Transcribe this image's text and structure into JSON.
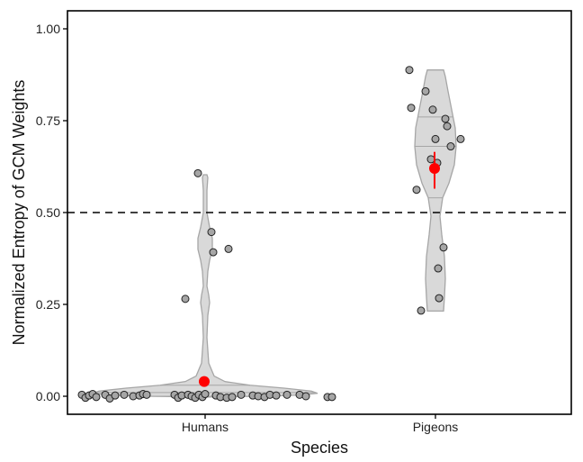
{
  "chart_data": {
    "type": "violin",
    "xlabel": "Species",
    "ylabel": "Normalized Entropy of GCM Weights",
    "ylim": [
      -0.05,
      1.05
    ],
    "yticks": [
      "0.00",
      "0.25",
      "0.50",
      "0.75",
      "1.00"
    ],
    "ytick_values": [
      0,
      0.25,
      0.5,
      0.75,
      1.0
    ],
    "categories": [
      "Humans",
      "Pigeons"
    ],
    "reference_line": {
      "y": 0.5,
      "style": "dashed",
      "color": "#000000"
    },
    "colors": {
      "violin_fill": "#d9d9d9",
      "violin_stroke": "#a6a6a6",
      "points": "#a6a6a6",
      "mean": "#ff0000"
    },
    "groups": [
      {
        "name": "Humans",
        "mean": 0.04,
        "error": [
          0.035,
          0.045
        ],
        "quantiles": [
          0.0,
          0.01,
          0.03
        ],
        "points": [
          0.004,
          -0.004,
          0.002,
          0.006,
          -0.002,
          0.004,
          -0.006,
          0.002,
          0.004,
          0.0,
          0.002,
          0.006,
          0.004,
          0.004,
          -0.004,
          0.002,
          0.004,
          0.0,
          -0.004,
          0.004,
          -0.002,
          0.006,
          0.002,
          -0.002,
          -0.004,
          -0.002,
          0.004,
          0.002,
          0.0,
          -0.002,
          0.004,
          0.002,
          0.004,
          0.004,
          0.0,
          -0.002,
          -0.002,
          0.607,
          0.447,
          0.392,
          0.401,
          0.265
        ]
      },
      {
        "name": "Pigeons",
        "mean": 0.62,
        "error": [
          0.565,
          0.665
        ],
        "quantiles": [
          0.54,
          0.68,
          0.76
        ],
        "points": [
          0.888,
          0.83,
          0.78,
          0.785,
          0.755,
          0.735,
          0.7,
          0.7,
          0.68,
          0.645,
          0.635,
          0.562,
          0.405,
          0.348,
          0.267,
          0.233
        ]
      }
    ]
  }
}
